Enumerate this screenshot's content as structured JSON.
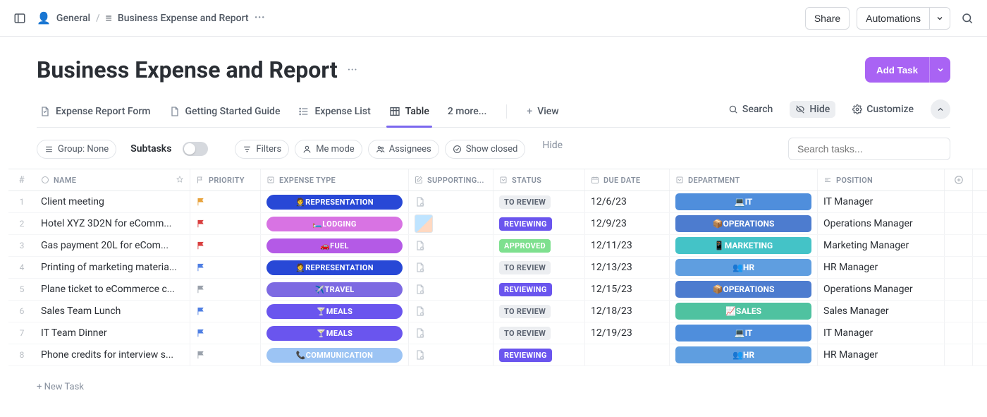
{
  "topbar": {
    "workspace_emoji": "👤",
    "workspace_name": "General",
    "page_emoji": "≡",
    "page_name": "Business Expense and Report",
    "share_label": "Share",
    "automations_label": "Automations"
  },
  "header": {
    "title": "Business Expense and Report",
    "add_task_label": "Add Task"
  },
  "tabs": {
    "items": [
      {
        "label": "Expense Report Form"
      },
      {
        "label": "Getting Started Guide"
      },
      {
        "label": "Expense List"
      },
      {
        "label": "Table",
        "active": true
      },
      {
        "label": "2 more..."
      }
    ],
    "view_label": "View",
    "search_label": "Search",
    "hide_label": "Hide",
    "customize_label": "Customize"
  },
  "toolbar": {
    "group_label": "Group: None",
    "subtasks_label": "Subtasks",
    "filters_label": "Filters",
    "me_mode_label": "Me mode",
    "assignees_label": "Assignees",
    "show_closed_label": "Show closed",
    "hide_label": "Hide",
    "search_placeholder": "Search tasks..."
  },
  "columns": {
    "hash": "#",
    "name": "NAME",
    "priority": "PRIORITY",
    "expense_type": "EXPENSE TYPE",
    "supporting": "SUPPORTING...",
    "status": "STATUS",
    "due_date": "DUE DATE",
    "department": "DEPARTMENT",
    "position": "POSITION"
  },
  "status_colors": {
    "TO REVIEW": {
      "bg": "#eceef1",
      "fg": "#5a6270"
    },
    "REVIEWING": {
      "bg": "#6a55ee",
      "fg": "#ffffff"
    },
    "APPROVED": {
      "bg": "#7ee08f",
      "fg": "#ffffff"
    }
  },
  "expense_type_colors": {
    "REPRESENTATION": {
      "bg": "#2848d6",
      "emoji": "🤵"
    },
    "LODGING": {
      "bg": "#d873e3",
      "emoji": "🛏️"
    },
    "FUEL": {
      "bg": "#b45ae6",
      "emoji": "🚗"
    },
    "TRAVEL": {
      "bg": "#7d6ae2",
      "emoji": "✈️"
    },
    "MEALS": {
      "bg": "#6a55ee",
      "emoji": "🍸"
    },
    "COMMUNICATION": {
      "bg": "#9cc4f4",
      "emoji": "📞"
    }
  },
  "department_colors": {
    "IT": {
      "bg": "#4f8edc",
      "emoji": "💻"
    },
    "OPERATIONS": {
      "bg": "#4d7ccf",
      "emoji": "📦"
    },
    "MARKETING": {
      "bg": "#44c3c7",
      "emoji": "📱"
    },
    "HR": {
      "bg": "#5f9ee0",
      "emoji": "👥"
    },
    "SALES": {
      "bg": "#4fc2a0",
      "emoji": "📈"
    }
  },
  "priority_colors": {
    "urgent": "#d93f3f",
    "high": "#e8a33d",
    "normal": "#4f7fe3",
    "low": "#9aa1ab"
  },
  "rows": [
    {
      "idx": "1",
      "name": "Client meeting",
      "priority": "high",
      "expense_type": "REPRESENTATION",
      "supporting": "doc",
      "status": "TO REVIEW",
      "due": "12/6/23",
      "department": "IT",
      "position": "IT Manager"
    },
    {
      "idx": "2",
      "name": "Hotel XYZ 3D2N for eComm...",
      "priority": "urgent",
      "expense_type": "LODGING",
      "supporting": "thumb",
      "status": "REVIEWING",
      "due": "12/9/23",
      "department": "OPERATIONS",
      "position": "Operations Manager"
    },
    {
      "idx": "3",
      "name": "Gas payment 20L for eCom...",
      "priority": "urgent",
      "expense_type": "FUEL",
      "supporting": "doc",
      "status": "APPROVED",
      "due": "12/11/23",
      "department": "MARKETING",
      "position": "Marketing Manager"
    },
    {
      "idx": "4",
      "name": "Printing of marketing materia...",
      "priority": "normal",
      "expense_type": "REPRESENTATION",
      "supporting": "doc",
      "status": "TO REVIEW",
      "due": "12/13/23",
      "department": "HR",
      "position": "HR Manager"
    },
    {
      "idx": "5",
      "name": "Plane ticket to eCommerce c...",
      "priority": "low",
      "expense_type": "TRAVEL",
      "supporting": "doc",
      "status": "REVIEWING",
      "due": "12/15/23",
      "department": "OPERATIONS",
      "position": "Operations Manager"
    },
    {
      "idx": "6",
      "name": "Sales Team Lunch",
      "priority": "normal",
      "expense_type": "MEALS",
      "supporting": "doc",
      "status": "TO REVIEW",
      "due": "12/18/23",
      "department": "SALES",
      "position": "Sales Manager"
    },
    {
      "idx": "7",
      "name": "IT Team Dinner",
      "priority": "normal",
      "expense_type": "MEALS",
      "supporting": "doc",
      "status": "TO REVIEW",
      "due": "12/19/23",
      "department": "IT",
      "position": "IT Manager"
    },
    {
      "idx": "8",
      "name": "Phone credits for interview s...",
      "priority": "low",
      "expense_type": "COMMUNICATION",
      "supporting": "doc",
      "status": "REVIEWING",
      "due": "",
      "department": "HR",
      "position": "HR Manager"
    }
  ],
  "new_task_label": "+ New Task"
}
